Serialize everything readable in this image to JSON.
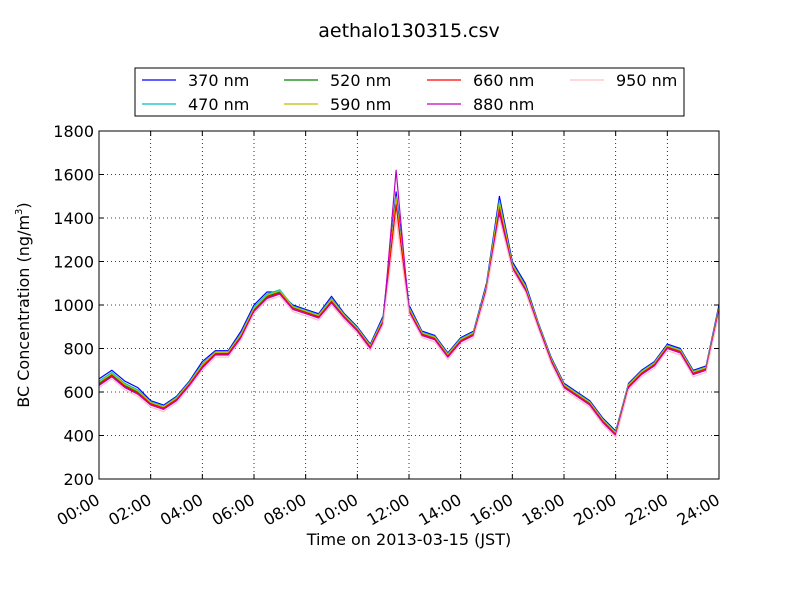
{
  "chart_data": {
    "type": "line",
    "title": "aethalo130315.csv",
    "xlabel": "Time on 2013-03-15 (JST)",
    "ylabel": "BC Concentration (ng/m",
    "ylabel_sup": "3",
    "ylabel_end": ")",
    "ylim": [
      200,
      1800
    ],
    "xlim": [
      0,
      24
    ],
    "x_unit": "hours",
    "grid": true,
    "legend_position": "top",
    "yticks": [
      200,
      400,
      600,
      800,
      1000,
      1200,
      1400,
      1600,
      1800
    ],
    "xticks": [
      "00:00",
      "02:00",
      "04:00",
      "06:00",
      "08:00",
      "10:00",
      "12:00",
      "14:00",
      "16:00",
      "18:00",
      "20:00",
      "22:00",
      "24:00"
    ],
    "x": [
      0,
      0.5,
      1,
      1.5,
      2,
      2.5,
      3,
      3.5,
      4,
      4.5,
      5,
      5.5,
      6,
      6.5,
      7,
      7.5,
      8,
      8.5,
      9,
      9.5,
      10,
      10.5,
      11,
      11.5,
      12,
      12.5,
      13,
      13.5,
      14,
      14.5,
      15,
      15.5,
      16,
      16.5,
      17,
      17.5,
      18,
      18.5,
      19,
      19.5,
      20,
      20.5,
      21,
      21.5,
      22,
      22.5,
      23,
      23.5,
      24
    ],
    "series": [
      {
        "name": "370 nm",
        "color": "#0000ff",
        "values": [
          660,
          700,
          650,
          620,
          560,
          540,
          580,
          650,
          740,
          790,
          790,
          880,
          1000,
          1060,
          1060,
          1000,
          980,
          960,
          1040,
          960,
          900,
          820,
          950,
          1520,
          1000,
          880,
          860,
          780,
          850,
          880,
          1100,
          1500,
          1200,
          1100,
          920,
          760,
          640,
          600,
          560,
          480,
          420,
          640,
          700,
          740,
          820,
          800,
          700,
          720,
          1000
        ]
      },
      {
        "name": "470 nm",
        "color": "#00bfbf",
        "values": [
          650,
          690,
          640,
          610,
          555,
          535,
          575,
          645,
          730,
          785,
          785,
          870,
          990,
          1050,
          1070,
          995,
          975,
          955,
          1030,
          955,
          895,
          815,
          940,
          1500,
          990,
          875,
          855,
          775,
          845,
          875,
          1090,
          1480,
          1190,
          1090,
          915,
          755,
          635,
          595,
          555,
          475,
          415,
          635,
          695,
          735,
          815,
          795,
          695,
          715,
          990
        ]
      },
      {
        "name": "520 nm",
        "color": "#008000",
        "values": [
          640,
          680,
          630,
          600,
          550,
          530,
          570,
          640,
          720,
          780,
          780,
          860,
          980,
          1040,
          1060,
          990,
          970,
          950,
          1020,
          950,
          890,
          810,
          930,
          1480,
          980,
          870,
          850,
          770,
          840,
          870,
          1080,
          1460,
          1180,
          1080,
          910,
          750,
          630,
          590,
          550,
          470,
          410,
          630,
          690,
          730,
          810,
          790,
          690,
          710,
          980
        ]
      },
      {
        "name": "590 nm",
        "color": "#bfbf00",
        "values": [
          645,
          685,
          635,
          605,
          552,
          532,
          572,
          642,
          725,
          782,
          782,
          865,
          985,
          1045,
          1065,
          992,
          972,
          952,
          1025,
          952,
          892,
          812,
          935,
          1490,
          985,
          872,
          852,
          772,
          842,
          872,
          1085,
          1470,
          1185,
          1085,
          912,
          752,
          632,
          592,
          552,
          472,
          412,
          632,
          692,
          732,
          812,
          792,
          692,
          712,
          985
        ]
      },
      {
        "name": "660 nm",
        "color": "#ff0000",
        "values": [
          635,
          675,
          625,
          595,
          545,
          525,
          565,
          635,
          715,
          775,
          775,
          855,
          975,
          1035,
          1055,
          985,
          965,
          945,
          1015,
          945,
          885,
          805,
          925,
          1460,
          975,
          865,
          845,
          765,
          835,
          865,
          1075,
          1440,
          1175,
          1075,
          905,
          745,
          625,
          585,
          545,
          465,
          405,
          625,
          685,
          725,
          805,
          785,
          685,
          705,
          975
        ]
      },
      {
        "name": "880 nm",
        "color": "#bf00bf",
        "values": [
          630,
          670,
          620,
          590,
          540,
          520,
          560,
          630,
          710,
          770,
          770,
          850,
          970,
          1030,
          1050,
          980,
          960,
          940,
          1010,
          940,
          880,
          800,
          920,
          1620,
          970,
          860,
          840,
          760,
          830,
          860,
          1070,
          1420,
          1170,
          1070,
          900,
          740,
          620,
          580,
          540,
          460,
          400,
          620,
          680,
          720,
          800,
          780,
          680,
          700,
          970
        ]
      },
      {
        "name": "950 nm",
        "color": "#ffc0cb",
        "values": [
          620,
          660,
          610,
          580,
          530,
          510,
          550,
          620,
          700,
          760,
          760,
          840,
          960,
          1020,
          1040,
          970,
          950,
          930,
          1000,
          930,
          870,
          790,
          910,
          1400,
          960,
          850,
          830,
          750,
          820,
          850,
          1060,
          1400,
          1160,
          1060,
          890,
          730,
          610,
          570,
          530,
          450,
          390,
          610,
          670,
          710,
          790,
          770,
          670,
          690,
          960
        ]
      }
    ]
  }
}
